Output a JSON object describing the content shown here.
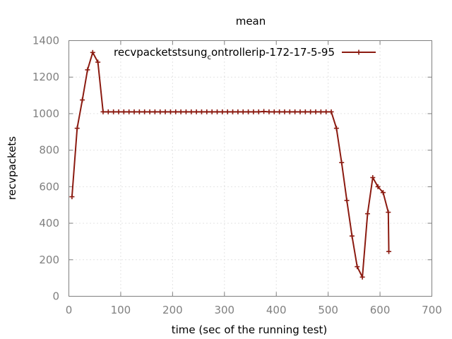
{
  "chart_data": {
    "type": "line",
    "title": "mean",
    "xlabel": "time (sec of the running test)",
    "ylabel": "recvpackets",
    "xlim": [
      0,
      700
    ],
    "ylim": [
      0,
      1400
    ],
    "x_ticks": [
      "0",
      "100",
      "200",
      "300",
      "400",
      "500",
      "600",
      "700"
    ],
    "y_ticks": [
      "0",
      "200",
      "400",
      "600",
      "800",
      "1000",
      "1200",
      "1400"
    ],
    "grid": true,
    "legend_position": "top-right",
    "series": [
      {
        "name_prefix": "recvpacketstsung",
        "name_subscript": "c",
        "name_suffix": "ontrollerip-172-17-5-95",
        "color": "#8b1a10",
        "x": [
          6,
          16,
          26,
          36,
          46,
          56,
          66,
          76,
          86,
          96,
          106,
          116,
          126,
          136,
          146,
          156,
          166,
          176,
          186,
          196,
          206,
          216,
          226,
          236,
          246,
          256,
          266,
          276,
          286,
          296,
          306,
          316,
          326,
          336,
          346,
          356,
          366,
          376,
          386,
          396,
          406,
          416,
          426,
          436,
          446,
          456,
          466,
          476,
          486,
          496,
          506,
          516,
          526,
          536,
          546,
          556,
          566,
          576,
          586,
          596,
          606,
          616,
          617
        ],
        "y": [
          545,
          920,
          1075,
          1240,
          1335,
          1282,
          1010,
          1010,
          1010,
          1010,
          1010,
          1010,
          1010,
          1010,
          1010,
          1010,
          1010,
          1010,
          1010,
          1010,
          1010,
          1010,
          1010,
          1010,
          1010,
          1010,
          1010,
          1010,
          1010,
          1010,
          1010,
          1010,
          1010,
          1010,
          1010,
          1010,
          1010,
          1012,
          1010,
          1010,
          1010,
          1010,
          1010,
          1010,
          1010,
          1010,
          1010,
          1010,
          1010,
          1010,
          1010,
          920,
          732,
          525,
          330,
          162,
          105,
          452,
          650,
          600,
          568,
          460,
          245
        ]
      }
    ]
  }
}
